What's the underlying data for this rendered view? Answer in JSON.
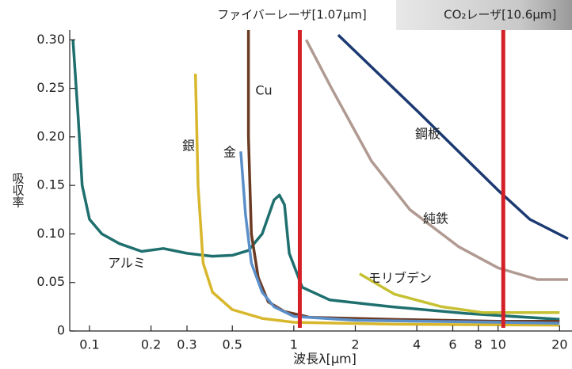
{
  "chart_data": {
    "type": "line",
    "x_scale": "log",
    "x_label": "波長λ[μm]",
    "y_label": "吸収率",
    "xlim": [
      0.08,
      23
    ],
    "ylim": [
      0,
      0.31
    ],
    "xticks": [
      0.1,
      0.2,
      0.3,
      0.5,
      1,
      2,
      4,
      6,
      8,
      10,
      20
    ],
    "yticks": [
      0,
      0.05,
      {
        "value": 0.1,
        "label": "0.10"
      },
      0.15,
      {
        "value": 0.2,
        "label": "0.20"
      },
      0.25,
      {
        "value": 0.3,
        "label": "0.30"
      }
    ],
    "markers": [
      {
        "x": 1.07,
        "label": "ファイバーレーザ[1.07μm]",
        "color": "#d42027"
      },
      {
        "x": 10.6,
        "label": "CO₂レーザ[10.6μm]",
        "color": "#d42027"
      }
    ],
    "series": [
      {
        "name": "アルミ",
        "color": "#1f6f6f",
        "x": [
          0.083,
          0.088,
          0.092,
          0.1,
          0.115,
          0.14,
          0.18,
          0.23,
          0.3,
          0.4,
          0.5,
          0.6,
          0.7,
          0.8,
          0.85,
          0.9,
          0.95,
          1.1,
          1.5,
          3,
          7,
          20
        ],
        "values": [
          0.3,
          0.22,
          0.15,
          0.115,
          0.1,
          0.09,
          0.082,
          0.085,
          0.08,
          0.077,
          0.078,
          0.083,
          0.1,
          0.135,
          0.14,
          0.13,
          0.08,
          0.045,
          0.032,
          0.025,
          0.018,
          0.012
        ]
      },
      {
        "name": "銀",
        "color": "#d8b72c",
        "x": [
          0.33,
          0.34,
          0.36,
          0.4,
          0.5,
          0.7,
          1,
          3,
          20
        ],
        "values": [
          0.265,
          0.15,
          0.07,
          0.04,
          0.022,
          0.013,
          0.009,
          0.007,
          0.006
        ]
      },
      {
        "name": "Cu",
        "color": "#6b3a22",
        "x": [
          0.6,
          0.6,
          0.62,
          0.67,
          0.75,
          0.9,
          1.2,
          3,
          10,
          20
        ],
        "values": [
          0.31,
          0.2,
          0.1,
          0.055,
          0.03,
          0.02,
          0.014,
          0.012,
          0.01,
          0.01
        ]
      },
      {
        "name": "金",
        "color": "#5b8fc9",
        "x": [
          0.55,
          0.58,
          0.62,
          0.7,
          0.8,
          1,
          2,
          10,
          20
        ],
        "values": [
          0.185,
          0.12,
          0.07,
          0.04,
          0.025,
          0.015,
          0.011,
          0.009,
          0.008
        ]
      },
      {
        "name": "鋼板",
        "color": "#1c3a72",
        "x": [
          1.65,
          2.6,
          4.1,
          6.4,
          10,
          14.3,
          22
        ],
        "values": [
          0.305,
          0.265,
          0.225,
          0.185,
          0.145,
          0.115,
          0.095
        ]
      },
      {
        "name": "純鉄",
        "color": "#b09a92",
        "x": [
          1.15,
          1.53,
          2.4,
          3.7,
          6.4,
          10,
          15.6,
          22
        ],
        "values": [
          0.3,
          0.25,
          0.175,
          0.125,
          0.087,
          0.065,
          0.053,
          0.053
        ]
      },
      {
        "name": "モリブデン",
        "color": "#c6c033",
        "x": [
          2.1,
          3.1,
          5.3,
          8.4,
          20
        ],
        "values": [
          0.059,
          0.038,
          0.025,
          0.019,
          0.019
        ]
      }
    ]
  }
}
